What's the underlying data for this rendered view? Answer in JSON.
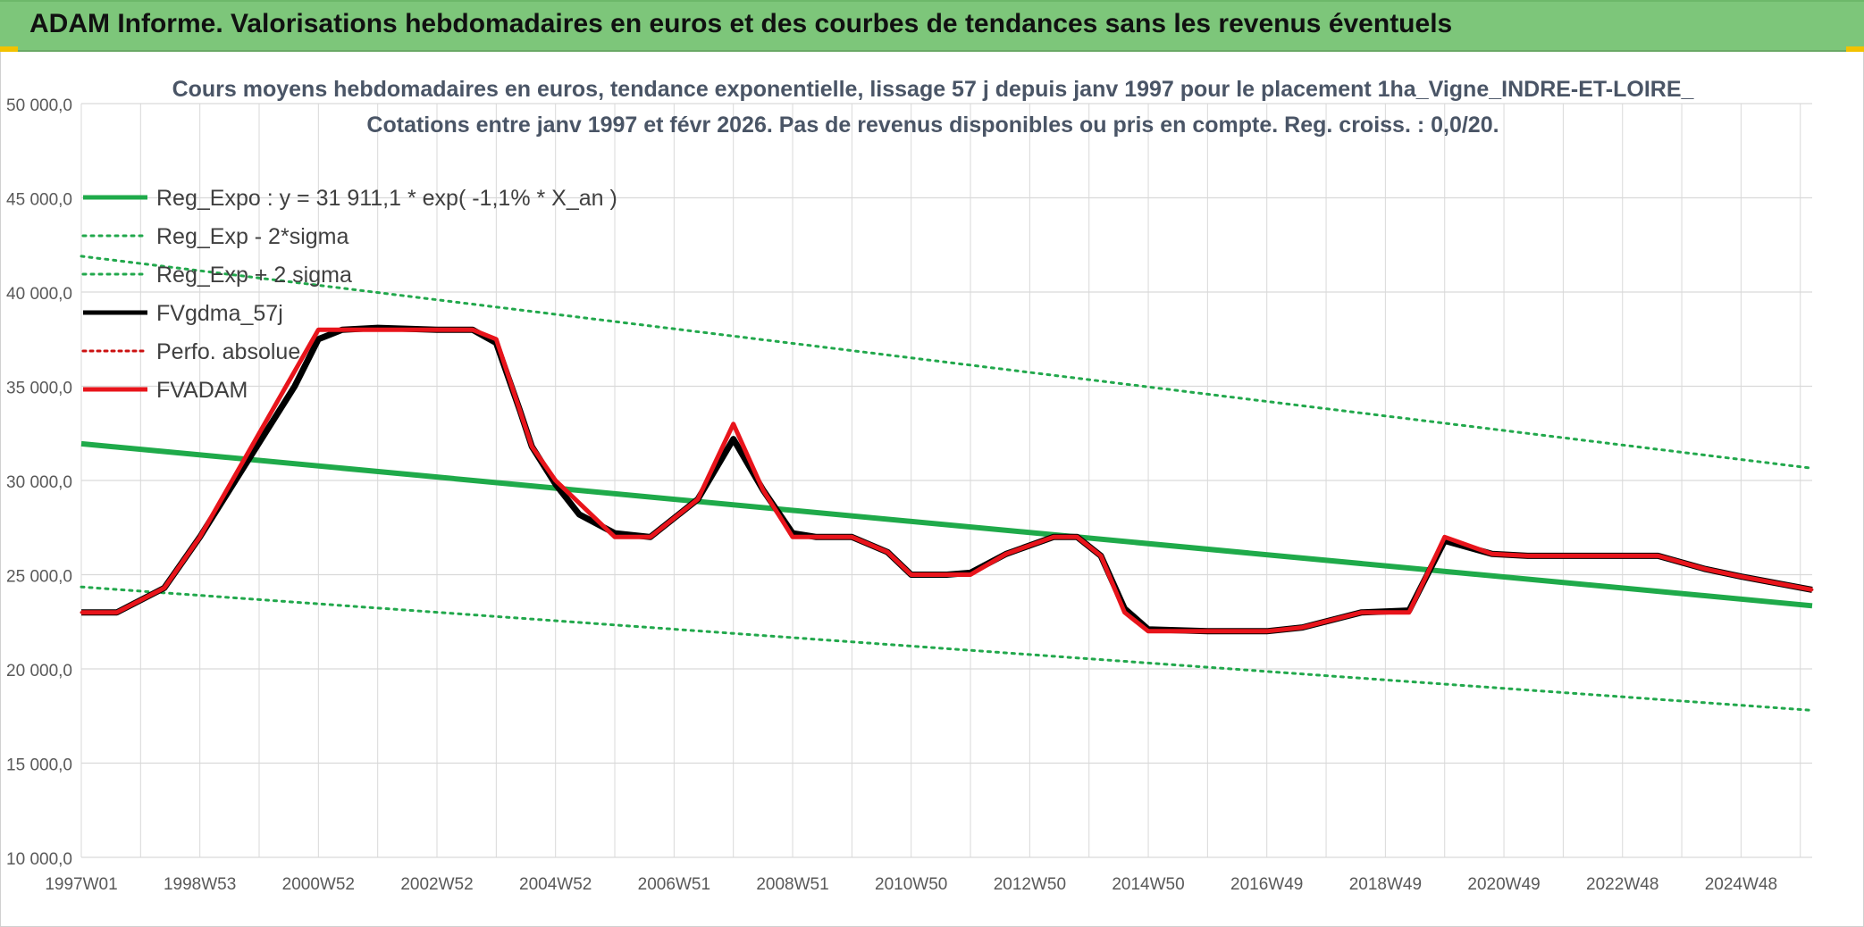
{
  "banner": {
    "title": "ADAM Informe. Valorisations hebdomadaires en euros et des courbes de tendances sans les revenus éventuels"
  },
  "colors": {
    "banner": "#7dc67a",
    "trend": "#1faa4a",
    "trend_band": "#22a84c",
    "smooth": "#000000",
    "perfo": "#cc1111",
    "fvadam": "#e8141b",
    "grid": "#d9d9d9",
    "title": "#4a5566"
  },
  "chart_data": {
    "type": "line",
    "title": "Cours moyens hebdomadaires en euros, tendance exponentielle, lissage 57 j depuis janv 1997 pour le placement 1ha_Vigne_INDRE-ET-LOIRE_",
    "subtitle": "Cotations entre janv 1997 et févr 2026. Pas de revenus disponibles ou pris en compte. Reg. croiss. : 0,0/20.",
    "xlabel": "",
    "ylabel": "",
    "x_range": [
      1997.0,
      2026.2
    ],
    "ylim": [
      10000,
      50000
    ],
    "y_ticks": [
      10000,
      15000,
      20000,
      25000,
      30000,
      35000,
      40000,
      45000,
      50000
    ],
    "y_tick_labels": [
      "10 000,0",
      "15 000,0",
      "20 000,0",
      "25 000,0",
      "30 000,0",
      "35 000,0",
      "40 000,0",
      "45 000,0",
      "50 000,0"
    ],
    "x_ticks": [
      1997.0,
      1999.0,
      2001.0,
      2003.0,
      2005.0,
      2007.0,
      2009.0,
      2011.0,
      2013.0,
      2015.0,
      2017.0,
      2019.0,
      2021.0,
      2023.0,
      2025.0
    ],
    "x_tick_labels": [
      "1997W01",
      "1998W53",
      "2000W52",
      "2002W52",
      "2004W52",
      "2006W51",
      "2008W51",
      "2010W50",
      "2012W50",
      "2014W50",
      "2016W49",
      "2018W49",
      "2020W49",
      "2022W48",
      "2024W48"
    ],
    "grid": true,
    "legend_position": "top-left",
    "series": [
      {
        "name": "Reg_Expo : y = 31 911,1 * exp( -1,1% *  X_an )",
        "style": "solid-thick",
        "x": [
          1997.0,
          2026.2
        ],
        "y": [
          31950,
          23350
        ]
      },
      {
        "name": "Reg_Exp - 2*sigma",
        "style": "dotted",
        "x": [
          1997.0,
          2026.2
        ],
        "y": [
          24350,
          17800
        ]
      },
      {
        "name": "Reg_Exp + 2 sigma",
        "style": "dotted",
        "x": [
          1997.0,
          2026.2
        ],
        "y": [
          41900,
          30650
        ]
      },
      {
        "name": "FVgdma_57j",
        "style": "solid",
        "x": [
          1997.0,
          1997.6,
          1998.4,
          1999.0,
          1999.8,
          2000.6,
          2001.0,
          2001.4,
          2002.0,
          2003.0,
          2003.6,
          2004.0,
          2004.4,
          2004.6,
          2005.0,
          2005.4,
          2006.0,
          2006.6,
          2007.4,
          2008.0,
          2008.5,
          2009.0,
          2009.4,
          2010.0,
          2010.6,
          2011.0,
          2011.6,
          2012.0,
          2012.6,
          2013.4,
          2013.8,
          2014.2,
          2014.6,
          2015.0,
          2016.0,
          2017.0,
          2017.6,
          2018.6,
          2019.4,
          2020.0,
          2020.8,
          2021.4,
          2022.0,
          2023.0,
          2023.6,
          2024.4,
          2025.0,
          2026.2
        ],
        "y": [
          23000,
          23000,
          24300,
          27000,
          31000,
          35000,
          37500,
          38000,
          38100,
          38000,
          38000,
          37300,
          33700,
          31800,
          29800,
          28200,
          27200,
          27000,
          29000,
          32200,
          29500,
          27200,
          27000,
          27000,
          26200,
          25000,
          25000,
          25100,
          26100,
          27000,
          27000,
          26000,
          23200,
          22100,
          22000,
          22000,
          22200,
          23000,
          23100,
          26800,
          26100,
          26000,
          26000,
          26000,
          26000,
          25300,
          24900,
          24200
        ]
      },
      {
        "name": "Perfo. absolue",
        "style": "dotted",
        "x": [
          1997.0,
          1997.6,
          1998.4,
          1999.0,
          2001.0,
          2003.6,
          2004.0,
          2004.4,
          2004.6,
          2005.0,
          2006.0,
          2006.6,
          2007.4,
          2008.0,
          2008.5,
          2009.0,
          2009.4,
          2010.0,
          2010.6,
          2011.0,
          2011.6,
          2012.0,
          2012.6,
          2013.4,
          2013.8,
          2014.2,
          2014.6,
          2015.0,
          2016.0,
          2017.0,
          2017.6,
          2018.6,
          2019.4,
          2020.0,
          2020.8,
          2021.4,
          2022.0,
          2023.0,
          2023.6,
          2024.4,
          2025.0,
          2026.2
        ],
        "y": [
          23000,
          23000,
          24300,
          27000,
          38000,
          38000,
          37500,
          33700,
          31800,
          30000,
          27000,
          27000,
          29000,
          33000,
          29500,
          27000,
          27000,
          27000,
          26200,
          25000,
          25000,
          25000,
          26100,
          27000,
          27000,
          26000,
          23000,
          22000,
          22000,
          22000,
          22200,
          23000,
          23000,
          27000,
          26100,
          26000,
          26000,
          26000,
          26000,
          25300,
          24900,
          24200
        ]
      },
      {
        "name": "FVADAM",
        "style": "solid-thick",
        "x": [
          1997.0,
          1997.6,
          1998.4,
          1999.0,
          2001.0,
          2003.6,
          2004.0,
          2004.4,
          2004.6,
          2005.0,
          2006.0,
          2006.6,
          2007.4,
          2008.0,
          2008.5,
          2009.0,
          2009.4,
          2010.0,
          2010.6,
          2011.0,
          2011.6,
          2012.0,
          2012.6,
          2013.4,
          2013.8,
          2014.2,
          2014.6,
          2015.0,
          2016.0,
          2017.0,
          2017.6,
          2018.6,
          2019.4,
          2020.0,
          2020.8,
          2021.4,
          2022.0,
          2023.0,
          2023.6,
          2024.4,
          2025.0,
          2026.2
        ],
        "y": [
          23000,
          23000,
          24300,
          27000,
          38000,
          38000,
          37500,
          33700,
          31800,
          30000,
          27000,
          27000,
          29000,
          33000,
          29500,
          27000,
          27000,
          27000,
          26200,
          25000,
          25000,
          25000,
          26100,
          27000,
          27000,
          26000,
          23000,
          22000,
          22000,
          22000,
          22200,
          23000,
          23000,
          27000,
          26100,
          26000,
          26000,
          26000,
          26000,
          25300,
          24900,
          24200
        ]
      }
    ]
  }
}
